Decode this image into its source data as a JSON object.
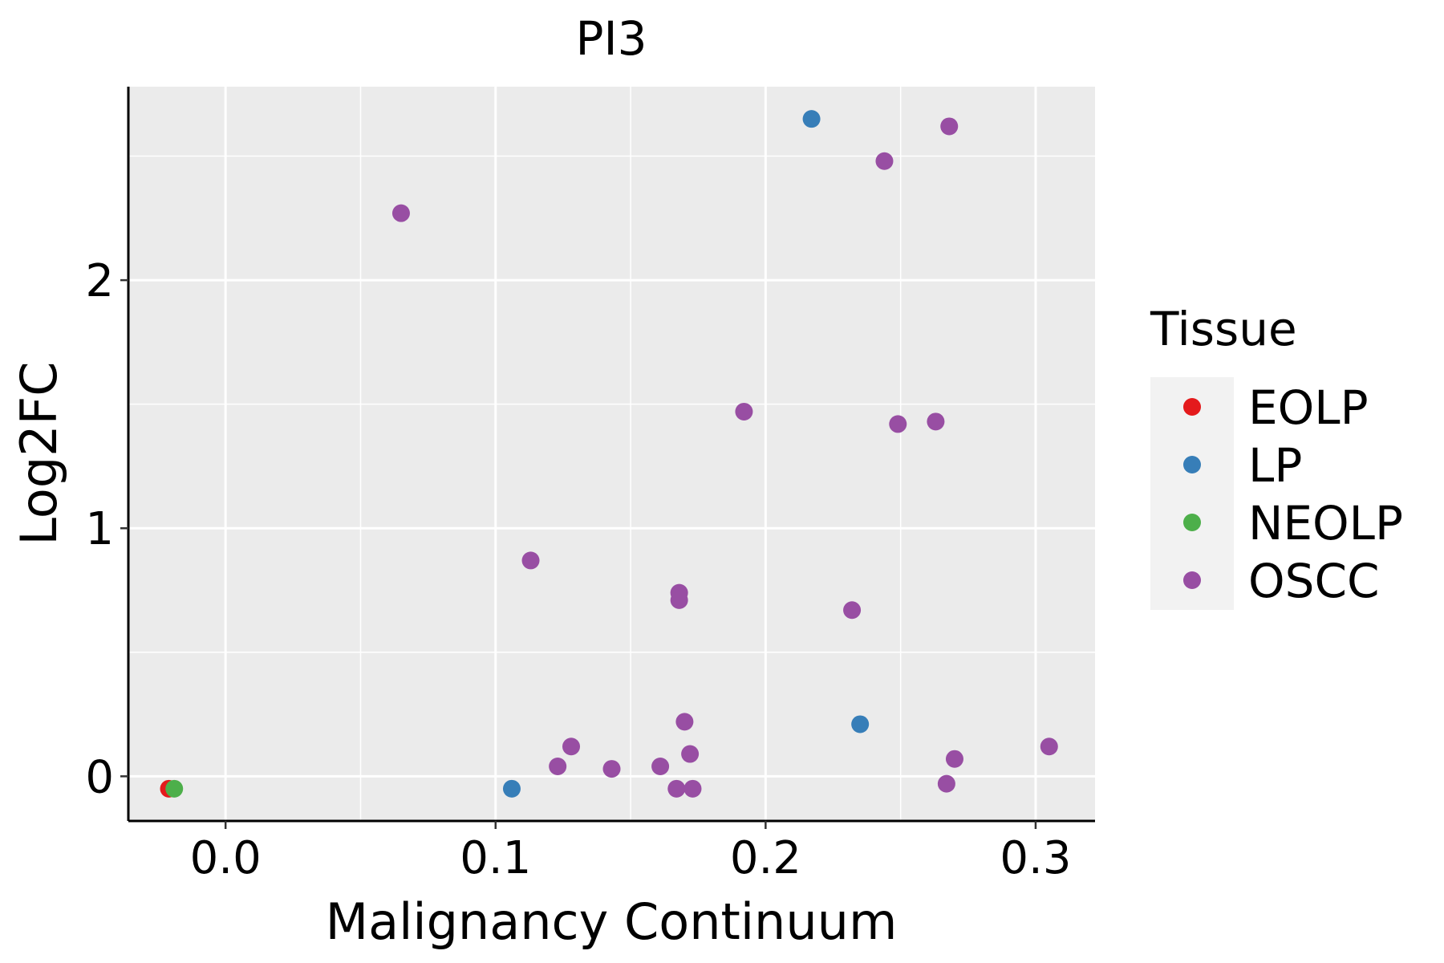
{
  "chart_data": {
    "type": "scatter",
    "title": "PI3",
    "xlabel": "Malignancy Continuum",
    "ylabel": "Log2FC",
    "xlim": [
      -0.036,
      0.322
    ],
    "ylim": [
      -0.18,
      2.78
    ],
    "x_ticks": [
      0.0,
      0.1,
      0.2,
      0.3
    ],
    "x_tick_labels": [
      "0.0",
      "0.1",
      "0.2",
      "0.3"
    ],
    "y_ticks": [
      0,
      1,
      2
    ],
    "y_tick_labels": [
      "0",
      "1",
      "2"
    ],
    "x_minor_ticks": [
      0.05,
      0.15,
      0.25
    ],
    "y_minor_ticks": [
      0.5,
      1.5,
      2.5
    ],
    "grid": true,
    "legend": {
      "title": "Tissue",
      "position": "right",
      "entries": [
        {
          "name": "EOLP",
          "color": "#E41A1C"
        },
        {
          "name": "LP",
          "color": "#377EB8"
        },
        {
          "name": "NEOLP",
          "color": "#4DAF4A"
        },
        {
          "name": "OSCC",
          "color": "#984EA3"
        }
      ]
    },
    "series": [
      {
        "name": "EOLP",
        "color": "#E41A1C",
        "points": [
          {
            "x": -0.021,
            "y": -0.05
          }
        ]
      },
      {
        "name": "LP",
        "color": "#377EB8",
        "points": [
          {
            "x": 0.106,
            "y": -0.05
          },
          {
            "x": 0.217,
            "y": 2.65
          },
          {
            "x": 0.235,
            "y": 0.21
          }
        ]
      },
      {
        "name": "NEOLP",
        "color": "#4DAF4A",
        "points": [
          {
            "x": -0.019,
            "y": -0.05
          }
        ]
      },
      {
        "name": "OSCC",
        "color": "#984EA3",
        "points": [
          {
            "x": 0.065,
            "y": 2.27
          },
          {
            "x": 0.113,
            "y": 0.87
          },
          {
            "x": 0.123,
            "y": 0.04
          },
          {
            "x": 0.128,
            "y": 0.12
          },
          {
            "x": 0.143,
            "y": 0.03
          },
          {
            "x": 0.161,
            "y": 0.04
          },
          {
            "x": 0.167,
            "y": -0.05
          },
          {
            "x": 0.168,
            "y": 0.74
          },
          {
            "x": 0.168,
            "y": 0.71
          },
          {
            "x": 0.17,
            "y": 0.22
          },
          {
            "x": 0.172,
            "y": 0.09
          },
          {
            "x": 0.173,
            "y": -0.05
          },
          {
            "x": 0.192,
            "y": 1.47
          },
          {
            "x": 0.232,
            "y": 0.67
          },
          {
            "x": 0.244,
            "y": 2.48
          },
          {
            "x": 0.249,
            "y": 1.42
          },
          {
            "x": 0.263,
            "y": 1.43
          },
          {
            "x": 0.267,
            "y": -0.03
          },
          {
            "x": 0.268,
            "y": 2.62
          },
          {
            "x": 0.27,
            "y": 0.07
          },
          {
            "x": 0.305,
            "y": 0.12
          }
        ]
      }
    ]
  }
}
